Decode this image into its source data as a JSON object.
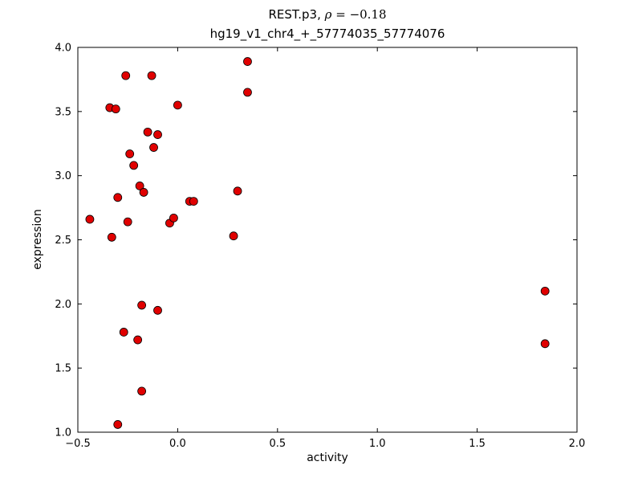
{
  "chart_data": {
    "type": "scatter",
    "title": "REST.p3, ρ = −0.18",
    "title_parts": {
      "prefix": "REST.p3, ",
      "rho": "ρ",
      "equals_value": " = −0.18"
    },
    "subtitle": "hg19_v1_chr4_+_57774035_57774076",
    "xlabel": "activity",
    "ylabel": "expression",
    "xlim": [
      -0.5,
      2.0
    ],
    "ylim": [
      1.0,
      4.0
    ],
    "xticks": [
      -0.5,
      0.0,
      0.5,
      1.0,
      1.5,
      2.0
    ],
    "xtick_labels": [
      "−0.5",
      "0.0",
      "0.5",
      "1.0",
      "1.5",
      "2.0"
    ],
    "yticks": [
      1.0,
      1.5,
      2.0,
      2.5,
      3.0,
      3.5,
      4.0
    ],
    "ytick_labels": [
      "1.0",
      "1.5",
      "2.0",
      "2.5",
      "3.0",
      "3.5",
      "4.0"
    ],
    "grid": false,
    "marker": "circle",
    "marker_color": "#e00000",
    "marker_edge_color": "#000000",
    "background_color": "#ffffff",
    "points": [
      [
        -0.44,
        2.66
      ],
      [
        -0.34,
        3.53
      ],
      [
        -0.31,
        3.52
      ],
      [
        -0.33,
        2.52
      ],
      [
        -0.3,
        2.83
      ],
      [
        -0.26,
        3.78
      ],
      [
        -0.27,
        1.78
      ],
      [
        -0.3,
        1.06
      ],
      [
        -0.25,
        2.64
      ],
      [
        -0.24,
        3.17
      ],
      [
        -0.22,
        3.08
      ],
      [
        -0.2,
        1.72
      ],
      [
        -0.19,
        2.92
      ],
      [
        -0.18,
        1.99
      ],
      [
        -0.18,
        1.32
      ],
      [
        -0.17,
        2.87
      ],
      [
        -0.15,
        3.34
      ],
      [
        -0.13,
        3.78
      ],
      [
        -0.12,
        3.22
      ],
      [
        -0.1,
        3.32
      ],
      [
        -0.1,
        1.95
      ],
      [
        -0.04,
        2.63
      ],
      [
        -0.02,
        2.67
      ],
      [
        0.0,
        3.55
      ],
      [
        0.06,
        2.8
      ],
      [
        0.08,
        2.8
      ],
      [
        0.28,
        2.53
      ],
      [
        0.3,
        2.88
      ],
      [
        0.35,
        3.89
      ],
      [
        0.35,
        3.65
      ],
      [
        1.84,
        2.1
      ],
      [
        1.84,
        1.69
      ]
    ]
  }
}
